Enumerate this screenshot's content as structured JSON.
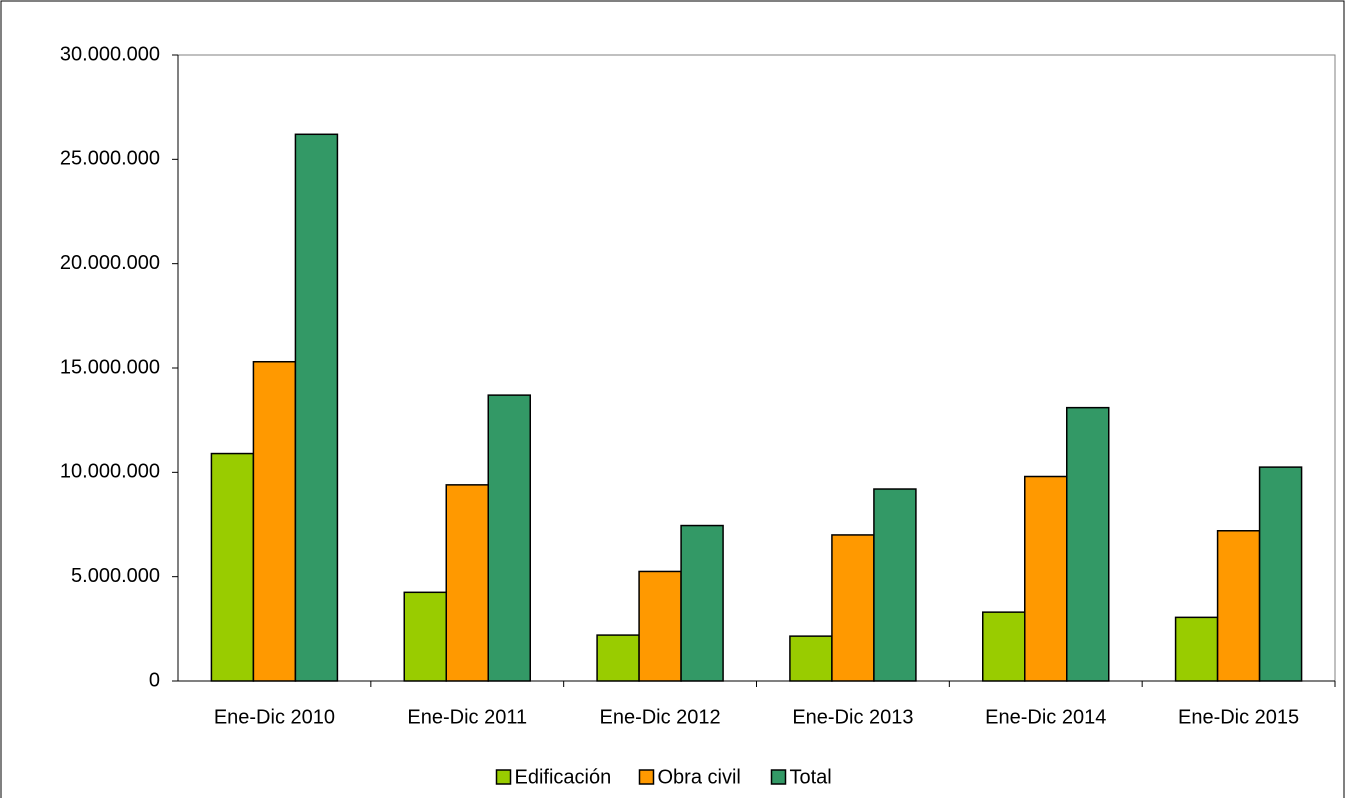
{
  "chart_data": {
    "type": "bar",
    "categories": [
      "Ene-Dic 2010",
      "Ene-Dic 2011",
      "Ene-Dic 2012",
      "Ene-Dic 2013",
      "Ene-Dic 2014",
      "Ene-Dic 2015"
    ],
    "series": [
      {
        "name": "Edificación",
        "color": "#99cc00",
        "values": [
          10900000,
          4250000,
          2200000,
          2150000,
          3300000,
          3050000
        ]
      },
      {
        "name": "Obra civil",
        "color": "#ff9900",
        "values": [
          15300000,
          9400000,
          5250000,
          7000000,
          9800000,
          7200000
        ]
      },
      {
        "name": "Total",
        "color": "#339966",
        "values": [
          26200000,
          13700000,
          7450000,
          9200000,
          13100000,
          10250000
        ]
      }
    ],
    "ylim": [
      0,
      30000000
    ],
    "yticks": [
      0,
      {
        "value": 5000000,
        "label": "5.000.000"
      },
      {
        "value": 10000000,
        "label": "10.000.000"
      },
      {
        "value": 15000000,
        "label": "15.000.000"
      },
      {
        "value": 20000000,
        "label": "20.000.000"
      },
      {
        "value": 25000000,
        "label": "25.000.000"
      },
      {
        "value": 30000000,
        "label": "30.000.000"
      }
    ],
    "grid": false,
    "legend": "bottom"
  }
}
